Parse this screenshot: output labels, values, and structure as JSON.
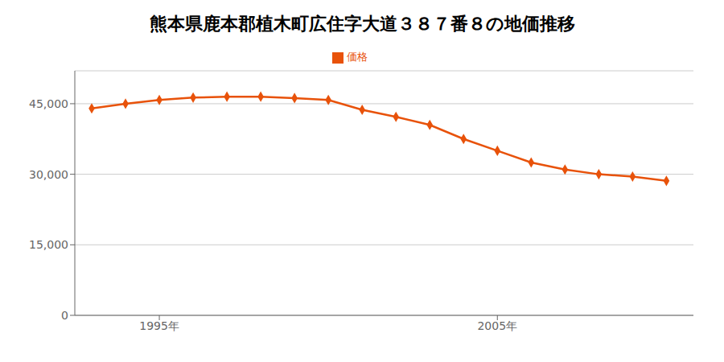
{
  "chart_data": {
    "type": "line",
    "title": "熊本県鹿本郡植木町広住字大道３８７番８の地価推移",
    "x": [
      1993,
      1994,
      1995,
      1996,
      1997,
      1998,
      1999,
      2000,
      2001,
      2002,
      2003,
      2004,
      2005,
      2006,
      2007,
      2008,
      2009,
      2010
    ],
    "series": [
      {
        "name": "価格",
        "color": "#e8520a",
        "values": [
          44000,
          45000,
          45800,
          46300,
          46500,
          46500,
          46200,
          45800,
          43700,
          42200,
          40500,
          37500,
          35000,
          32500,
          31000,
          30000,
          29500,
          28600
        ]
      }
    ],
    "marker": "diamond",
    "xlim": [
      1992.5,
      2010.8
    ],
    "xticks": [
      {
        "value": 1995,
        "label": "1995年"
      },
      {
        "value": 2005,
        "label": "2005年"
      }
    ],
    "ylim": [
      0,
      52000
    ],
    "yticks": [
      0,
      {
        "value": 15000,
        "label": "15,000"
      },
      {
        "value": 30000,
        "label": "30,000"
      },
      {
        "value": 45000,
        "label": "45,000"
      }
    ],
    "grid": "y",
    "legend": "top"
  }
}
